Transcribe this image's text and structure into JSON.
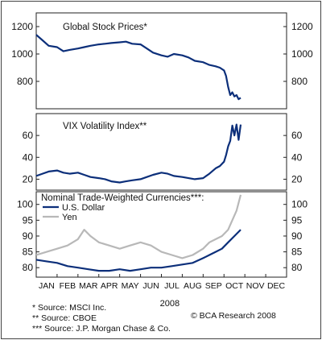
{
  "chart_data": [
    {
      "type": "line",
      "title": "Global Stock Prices*",
      "ylim": [
        600,
        1300
      ],
      "yticks": [
        800,
        1000,
        1200
      ],
      "grid": false,
      "series": [
        {
          "color": "#0c2f7a",
          "x": [
            0,
            0.3,
            0.6,
            1,
            1.3,
            1.6,
            2,
            2.3,
            2.6,
            3,
            3.3,
            3.6,
            4,
            4.3,
            4.6,
            5,
            5.3,
            5.6,
            6,
            6.3,
            6.6,
            7,
            7.3,
            7.6,
            8,
            8.3,
            8.6,
            8.8,
            9,
            9.1,
            9.2,
            9.3,
            9.4,
            9.5,
            9.6,
            9.7,
            9.8
          ],
          "values": [
            1140,
            1100,
            1060,
            1050,
            1020,
            1030,
            1040,
            1050,
            1060,
            1070,
            1075,
            1080,
            1085,
            1090,
            1075,
            1070,
            1040,
            1010,
            990,
            980,
            1000,
            990,
            975,
            950,
            940,
            920,
            910,
            900,
            880,
            840,
            760,
            700,
            720,
            690,
            700,
            670,
            680
          ]
        }
      ]
    },
    {
      "type": "line",
      "title": "VIX Volatility Index**",
      "ylim": [
        10,
        80
      ],
      "yticks": [
        20,
        40,
        60
      ],
      "grid": false,
      "series": [
        {
          "color": "#0c2f7a",
          "x": [
            0,
            0.3,
            0.6,
            1,
            1.3,
            1.6,
            2,
            2.3,
            2.6,
            3,
            3.3,
            3.6,
            4,
            4.3,
            4.6,
            5,
            5.3,
            5.6,
            6,
            6.3,
            6.6,
            7,
            7.3,
            7.6,
            8,
            8.3,
            8.6,
            8.8,
            9,
            9.1,
            9.2,
            9.3,
            9.4,
            9.5,
            9.6,
            9.7,
            9.8
          ],
          "values": [
            23,
            25,
            27,
            28,
            26,
            25,
            26,
            24,
            22,
            21,
            20,
            18,
            17,
            18,
            19,
            20,
            22,
            24,
            26,
            25,
            23,
            22,
            21,
            20,
            21,
            25,
            30,
            32,
            36,
            42,
            50,
            55,
            69,
            60,
            70,
            56,
            70
          ]
        }
      ]
    },
    {
      "type": "line",
      "title": "Nominal Trade-Weighted Currencies***:",
      "ylim": [
        77,
        104
      ],
      "yticks": [
        80,
        85,
        90,
        95,
        100
      ],
      "grid": false,
      "legend": "top-left",
      "series": [
        {
          "name": "U.S. Dollar",
          "color": "#0c2f7a",
          "x": [
            0,
            0.5,
            1,
            1.5,
            2,
            2.5,
            3,
            3.5,
            4,
            4.5,
            5,
            5.5,
            6,
            6.5,
            7,
            7.5,
            8,
            8.3,
            8.6,
            8.9,
            9.2,
            9.5,
            9.8
          ],
          "values": [
            82.5,
            82,
            81.5,
            80.5,
            80,
            79.5,
            79,
            79,
            79.5,
            79,
            79.5,
            80,
            80,
            80.5,
            81,
            81.5,
            83,
            84,
            85,
            86,
            88,
            90,
            92
          ]
        },
        {
          "name": "Yen",
          "color": "#b8b8b8",
          "x": [
            0,
            0.5,
            1,
            1.5,
            2,
            2.3,
            2.6,
            3,
            3.5,
            4,
            4.5,
            5,
            5.5,
            6,
            6.5,
            7,
            7.5,
            8,
            8.3,
            8.6,
            8.9,
            9.2,
            9.4,
            9.6,
            9.8
          ],
          "values": [
            84,
            85,
            86,
            87,
            89,
            92,
            90,
            88,
            87,
            86,
            87,
            88,
            87,
            85,
            84,
            83,
            84,
            86,
            88,
            89,
            90,
            92,
            95,
            98,
            103
          ]
        }
      ]
    }
  ],
  "x_axis": {
    "categories": [
      "JAN",
      "FEB",
      "MAR",
      "APR",
      "MAY",
      "JUN",
      "JUL",
      "AUG",
      "SEP",
      "OCT",
      "NOV",
      "DEC"
    ],
    "year_label": "2008"
  },
  "notes": {
    "line1": "*   Source: MSCI Inc.",
    "line2": "**  Source: CBOE",
    "line3": "*** Source: J.P. Morgan Chase & Co."
  },
  "credit": "© BCA Research 2008"
}
